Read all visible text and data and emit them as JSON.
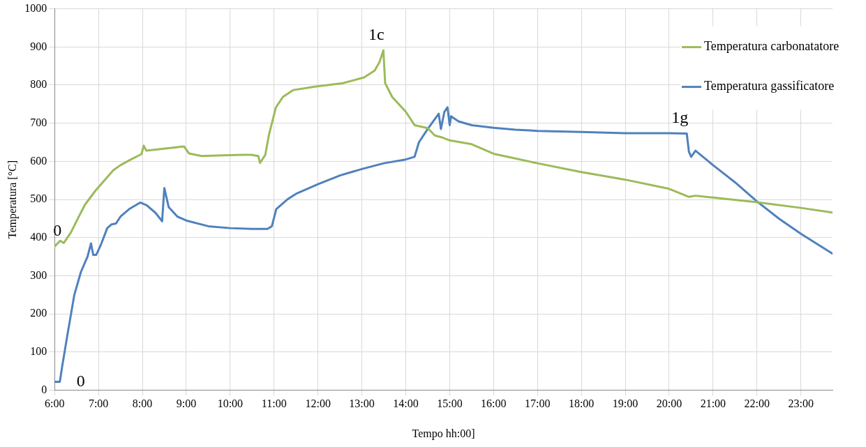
{
  "chart_data": {
    "type": "line",
    "xlabel": "Tempo hh:00]",
    "ylabel": "Temperatura [°C]",
    "xlim": [
      6,
      23.72
    ],
    "ylim": [
      0,
      1000
    ],
    "xticks": [
      {
        "value": 6,
        "label": "6:00"
      },
      {
        "value": 7,
        "label": "7:00"
      },
      {
        "value": 8,
        "label": "8:00"
      },
      {
        "value": 9,
        "label": "9:00"
      },
      {
        "value": 10,
        "label": "10:00"
      },
      {
        "value": 11,
        "label": "11:00"
      },
      {
        "value": 12,
        "label": "12:00"
      },
      {
        "value": 13,
        "label": "13:00"
      },
      {
        "value": 14,
        "label": "14:00"
      },
      {
        "value": 15,
        "label": "15:00"
      },
      {
        "value": 16,
        "label": "16:00"
      },
      {
        "value": 17,
        "label": "17:00"
      },
      {
        "value": 18,
        "label": "18:00"
      },
      {
        "value": 19,
        "label": "19:00"
      },
      {
        "value": 20,
        "label": "20:00"
      },
      {
        "value": 21,
        "label": "21:00"
      },
      {
        "value": 22,
        "label": "22:00"
      },
      {
        "value": 23,
        "label": "23:00"
      }
    ],
    "yticks": [
      0,
      100,
      200,
      300,
      400,
      500,
      600,
      700,
      800,
      900,
      1000
    ],
    "grid": true,
    "legend": "top right",
    "marker": "none",
    "line_style": "solid",
    "series": [
      {
        "name": "Temperatura carbonatatore",
        "color": "#9bbb59",
        "x": [
          6.0,
          6.13,
          6.21,
          6.37,
          6.53,
          6.69,
          6.93,
          7.18,
          7.34,
          7.5,
          7.74,
          7.98,
          8.03,
          8.09,
          8.38,
          8.7,
          8.95,
          9.06,
          9.35,
          9.83,
          10.31,
          10.48,
          10.64,
          10.68,
          10.8,
          10.88,
          11.04,
          11.2,
          11.44,
          11.93,
          12.57,
          13.05,
          13.29,
          13.4,
          13.49,
          13.53,
          13.69,
          14.0,
          14.2,
          14.5,
          14.66,
          14.82,
          15.0,
          15.5,
          16.0,
          17.0,
          18.0,
          19.0,
          20.0,
          20.45,
          20.6,
          21.0,
          22.0,
          23.0,
          23.72
        ],
        "values": [
          377,
          392,
          386,
          413,
          450,
          486,
          523,
          556,
          577,
          590,
          605,
          619,
          641,
          628,
          632,
          636,
          639,
          621,
          614,
          616,
          617,
          617,
          614,
          596,
          617,
          668,
          741,
          769,
          787,
          796,
          805,
          820,
          838,
          860,
          891,
          805,
          769,
          730,
          695,
          687,
          668,
          663,
          655,
          645,
          620,
          595,
          572,
          552,
          528,
          507,
          510,
          505,
          493,
          478,
          466
        ]
      },
      {
        "name": "Temperatura gassificatore",
        "color": "#4f81bd",
        "x": [
          6.0,
          6.12,
          6.17,
          6.3,
          6.45,
          6.6,
          6.75,
          6.83,
          6.88,
          6.95,
          7.05,
          7.2,
          7.3,
          7.4,
          7.5,
          7.7,
          7.95,
          8.1,
          8.3,
          8.45,
          8.5,
          8.6,
          8.8,
          9.0,
          9.5,
          10.0,
          10.5,
          10.85,
          10.95,
          11.05,
          11.3,
          11.5,
          12.0,
          12.5,
          13.0,
          13.5,
          14.0,
          14.2,
          14.3,
          14.5,
          14.75,
          14.8,
          14.88,
          14.95,
          15.0,
          15.03,
          15.2,
          15.5,
          16.0,
          16.5,
          17.0,
          18.0,
          19.0,
          20.0,
          20.4,
          20.45,
          20.5,
          20.6,
          21.0,
          21.5,
          22.0,
          22.5,
          23.0,
          23.72
        ],
        "values": [
          22,
          22,
          60,
          150,
          250,
          310,
          350,
          385,
          355,
          355,
          380,
          425,
          435,
          437,
          455,
          475,
          492,
          485,
          465,
          443,
          530,
          480,
          455,
          445,
          430,
          425,
          423,
          423,
          430,
          475,
          500,
          515,
          540,
          563,
          580,
          595,
          605,
          612,
          650,
          685,
          725,
          685,
          730,
          742,
          695,
          718,
          705,
          695,
          688,
          683,
          680,
          677,
          674,
          674,
          673,
          625,
          612,
          628,
          590,
          545,
          495,
          450,
          410,
          358
        ]
      }
    ],
    "annotations": [
      {
        "text": "0",
        "x": 6.0,
        "y": 377
      },
      {
        "text": "0",
        "x": 6.12,
        "y": 22
      },
      {
        "text": "1c",
        "x": 13.49,
        "y": 891
      },
      {
        "text": "1g",
        "x": 20.4,
        "y": 673
      }
    ]
  }
}
